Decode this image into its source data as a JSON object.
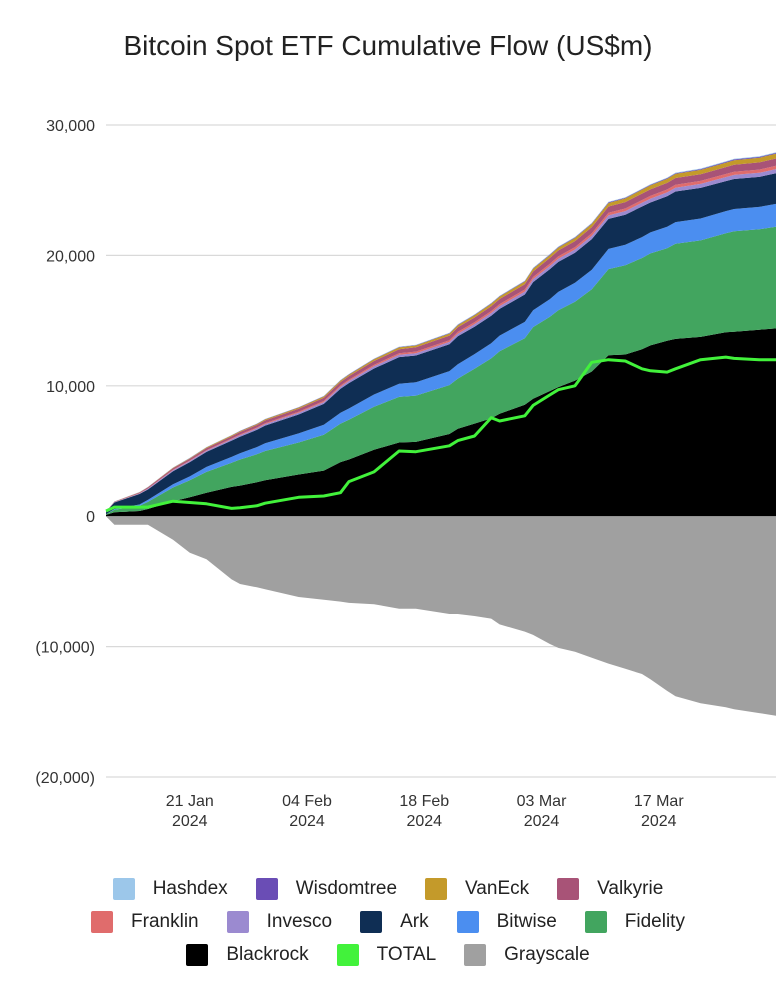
{
  "chart_data": {
    "type": "area",
    "title": "Bitcoin Spot ETF Cumulative Flow (US$m)",
    "xlabel": "",
    "ylabel": "",
    "ylim": [
      -20000,
      30000
    ],
    "yticks": [
      30000,
      20000,
      10000,
      0,
      -10000,
      -20000
    ],
    "ytick_labels": [
      "30,000",
      "20,000",
      "10,000",
      "0",
      "(10,000)",
      "(20,000)"
    ],
    "x_day_range": [
      0,
      80
    ],
    "xticks": [
      {
        "day": 10,
        "line1": "21 Jan",
        "line2": "2024"
      },
      {
        "day": 24,
        "line1": "04 Feb",
        "line2": "2024"
      },
      {
        "day": 38,
        "line1": "18 Feb",
        "line2": "2024"
      },
      {
        "day": 52,
        "line1": "03 Mar",
        "line2": "2024"
      },
      {
        "day": 66,
        "line1": "17 Mar",
        "line2": "2024"
      }
    ],
    "grid": true,
    "legend_position": "bottom",
    "x": [
      0,
      1,
      4,
      5,
      8,
      10,
      12,
      15,
      16,
      18,
      19,
      23,
      26,
      28,
      29,
      32,
      35,
      37,
      41,
      42,
      44,
      46,
      47,
      50,
      51,
      53,
      54,
      56,
      58,
      60,
      62,
      64,
      65,
      67,
      68,
      71,
      74,
      75,
      78,
      80
    ],
    "series": [
      {
        "name": "Blackrock",
        "color": "#000000",
        "values": [
          100,
          300,
          400,
          550,
          1150,
          1450,
          1800,
          2250,
          2350,
          2600,
          2750,
          3200,
          3500,
          4150,
          4350,
          5100,
          5650,
          5700,
          6300,
          6700,
          7100,
          7500,
          7850,
          8550,
          9000,
          9600,
          9900,
          10400,
          11100,
          12350,
          12400,
          12800,
          13100,
          13450,
          13600,
          13750,
          14100,
          14150,
          14300,
          14400
        ]
      },
      {
        "name": "Fidelity",
        "color": "#42a55f",
        "values": [
          50,
          200,
          400,
          550,
          1050,
          1300,
          1600,
          1850,
          2000,
          2150,
          2250,
          2450,
          2750,
          2950,
          3050,
          3300,
          3500,
          3550,
          3750,
          3850,
          4200,
          4600,
          4800,
          5100,
          5500,
          5700,
          5900,
          6050,
          6300,
          6600,
          6850,
          7000,
          7050,
          7100,
          7300,
          7400,
          7600,
          7700,
          7700,
          7800
        ]
      },
      {
        "name": "Bitwise",
        "color": "#4b8ef0",
        "values": [
          0,
          50,
          100,
          150,
          250,
          300,
          380,
          450,
          480,
          550,
          600,
          700,
          760,
          830,
          860,
          930,
          1000,
          1020,
          1080,
          1100,
          1130,
          1170,
          1200,
          1250,
          1300,
          1350,
          1400,
          1450,
          1500,
          1550,
          1570,
          1600,
          1610,
          1640,
          1650,
          1680,
          1700,
          1710,
          1720,
          1750
        ]
      },
      {
        "name": "Ark",
        "color": "#0f2e54",
        "values": [
          200,
          500,
          800,
          800,
          1000,
          1100,
          1150,
          1250,
          1270,
          1320,
          1350,
          1450,
          1600,
          1850,
          1950,
          2000,
          2050,
          2050,
          2050,
          2150,
          2100,
          2100,
          2050,
          2100,
          2150,
          2300,
          2300,
          2300,
          2350,
          2300,
          2300,
          2350,
          2300,
          2350,
          2350,
          2350,
          2300,
          2300,
          2300,
          2350
        ]
      },
      {
        "name": "Invesco",
        "color": "#9b8ad0",
        "values": [
          0,
          20,
          40,
          50,
          70,
          80,
          90,
          100,
          105,
          110,
          115,
          130,
          140,
          150,
          155,
          165,
          175,
          180,
          190,
          195,
          200,
          210,
          215,
          225,
          230,
          240,
          245,
          250,
          260,
          270,
          275,
          280,
          285,
          290,
          295,
          300,
          305,
          310,
          315,
          320
        ]
      },
      {
        "name": "Franklin",
        "color": "#e06c6c",
        "values": [
          0,
          10,
          20,
          25,
          35,
          40,
          45,
          55,
          60,
          65,
          70,
          80,
          85,
          95,
          100,
          110,
          115,
          120,
          130,
          135,
          140,
          145,
          150,
          160,
          165,
          175,
          180,
          185,
          190,
          200,
          205,
          210,
          215,
          220,
          225,
          230,
          235,
          240,
          245,
          250
        ]
      },
      {
        "name": "Valkyrie",
        "color": "#a85377",
        "values": [
          0,
          30,
          60,
          80,
          120,
          140,
          160,
          180,
          190,
          200,
          210,
          230,
          250,
          270,
          280,
          300,
          320,
          330,
          350,
          360,
          370,
          380,
          390,
          410,
          420,
          440,
          450,
          460,
          470,
          480,
          490,
          500,
          505,
          510,
          515,
          520,
          530,
          540,
          550,
          560
        ]
      },
      {
        "name": "VanEck",
        "color": "#c49a2a",
        "values": [
          0,
          10,
          20,
          25,
          35,
          40,
          50,
          60,
          65,
          70,
          75,
          85,
          95,
          105,
          110,
          125,
          135,
          140,
          155,
          160,
          170,
          180,
          185,
          200,
          210,
          220,
          225,
          240,
          250,
          270,
          280,
          290,
          300,
          310,
          315,
          330,
          340,
          350,
          360,
          370
        ]
      },
      {
        "name": "Wisdomtree",
        "color": "#6a4db5",
        "values": [
          0,
          5,
          8,
          10,
          14,
          16,
          18,
          20,
          21,
          22,
          23,
          25,
          27,
          29,
          30,
          32,
          34,
          35,
          37,
          38,
          39,
          40,
          41,
          43,
          44,
          46,
          47,
          48,
          50,
          52,
          53,
          54,
          55,
          56,
          57,
          58,
          59,
          60,
          61,
          62
        ]
      },
      {
        "name": "Hashdex",
        "color": "#9cc7ea",
        "values": [
          0,
          5,
          8,
          10,
          12,
          13,
          14,
          15,
          16,
          17,
          18,
          19,
          20,
          21,
          22,
          23,
          24,
          25,
          26,
          27,
          28,
          29,
          30,
          31,
          32,
          33,
          34,
          35,
          36,
          37,
          38,
          39,
          40,
          41,
          42,
          43,
          44,
          45,
          46,
          47
        ]
      },
      {
        "name": "Grayscale",
        "color": "#a0a0a0",
        "values": [
          0,
          -650,
          -650,
          -650,
          -1800,
          -2800,
          -3300,
          -4850,
          -5200,
          -5450,
          -5600,
          -6200,
          -6400,
          -6550,
          -6650,
          -6750,
          -7100,
          -7100,
          -7500,
          -7500,
          -7650,
          -7850,
          -8300,
          -8850,
          -9100,
          -9800,
          -10100,
          -10400,
          -10850,
          -11300,
          -11700,
          -12100,
          -12500,
          -13400,
          -13800,
          -14350,
          -14650,
          -14800,
          -15100,
          -15300
        ]
      },
      {
        "name": "TOTAL",
        "color": "#42f23b",
        "values": [
          400,
          700,
          700,
          700,
          1150,
          1050,
          950,
          600,
          650,
          800,
          1000,
          1450,
          1550,
          1800,
          2650,
          3400,
          5000,
          4950,
          5400,
          5800,
          6150,
          7550,
          7300,
          7700,
          8500,
          9300,
          9700,
          10000,
          11800,
          12000,
          11900,
          11300,
          11150,
          11050,
          11300,
          12000,
          12200,
          12100,
          12000,
          12000
        ]
      }
    ]
  },
  "legend": {
    "rows": [
      [
        {
          "label": "Hashdex",
          "color": "#9cc7ea"
        },
        {
          "label": "Wisdomtree",
          "color": "#6a4db5"
        },
        {
          "label": "VanEck",
          "color": "#c49a2a"
        },
        {
          "label": "Valkyrie",
          "color": "#a85377"
        }
      ],
      [
        {
          "label": "Franklin",
          "color": "#e06c6c"
        },
        {
          "label": "Invesco",
          "color": "#9b8ad0"
        },
        {
          "label": "Ark",
          "color": "#0f2e54"
        },
        {
          "label": "Bitwise",
          "color": "#4b8ef0"
        },
        {
          "label": "Fidelity",
          "color": "#42a55f"
        }
      ],
      [
        {
          "label": "Blackrock",
          "color": "#000000"
        },
        {
          "label": "TOTAL",
          "color": "#42f23b"
        },
        {
          "label": "Grayscale",
          "color": "#a0a0a0"
        }
      ]
    ]
  }
}
